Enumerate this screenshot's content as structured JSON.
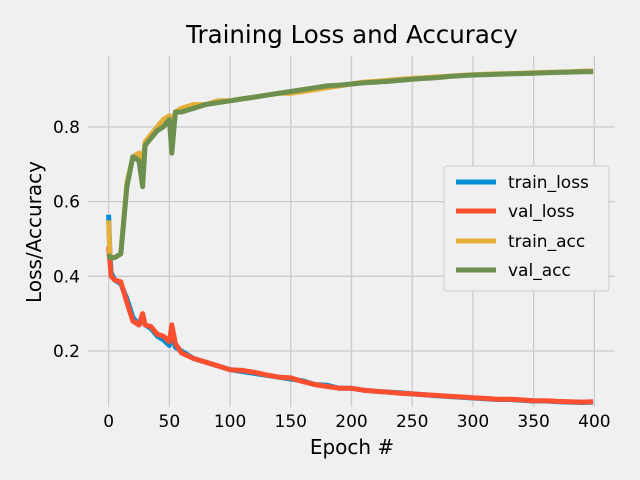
{
  "chart_data": {
    "type": "line",
    "title": "Training Loss and Accuracy",
    "xlabel": "Epoch #",
    "ylabel": "Loss/Accuracy",
    "xlim": [
      -17,
      417
    ],
    "ylim": [
      0.05,
      0.99
    ],
    "xticks": [
      0,
      50,
      100,
      150,
      200,
      250,
      300,
      350,
      400
    ],
    "yticks": [
      0.2,
      0.4,
      0.6,
      0.8
    ],
    "ytick_labels": [
      "0.2",
      "0.4",
      "0.6",
      "0.8"
    ],
    "grid": true,
    "legend_position": "center-right",
    "x": [
      0,
      1,
      2,
      5,
      10,
      15,
      20,
      25,
      28,
      30,
      35,
      40,
      45,
      50,
      52,
      55,
      60,
      70,
      80,
      90,
      100,
      110,
      120,
      130,
      140,
      150,
      160,
      170,
      180,
      190,
      200,
      210,
      220,
      230,
      240,
      250,
      260,
      270,
      280,
      290,
      300,
      310,
      320,
      330,
      340,
      350,
      360,
      370,
      380,
      390,
      399
    ],
    "series": [
      {
        "name": "train_loss",
        "color": "#008fd5",
        "values": [
          0.565,
          0.46,
          0.41,
          0.39,
          0.38,
          0.34,
          0.29,
          0.27,
          0.29,
          0.27,
          0.26,
          0.24,
          0.23,
          0.215,
          0.25,
          0.21,
          0.2,
          0.18,
          0.17,
          0.16,
          0.15,
          0.145,
          0.14,
          0.135,
          0.13,
          0.125,
          0.12,
          0.11,
          0.108,
          0.1,
          0.1,
          0.095,
          0.092,
          0.09,
          0.088,
          0.085,
          0.083,
          0.08,
          0.078,
          0.076,
          0.074,
          0.072,
          0.07,
          0.07,
          0.068,
          0.066,
          0.066,
          0.064,
          0.063,
          0.062,
          0.063
        ]
      },
      {
        "name": "val_loss",
        "color": "#fc4f30",
        "values": [
          0.48,
          0.44,
          0.4,
          0.39,
          0.385,
          0.33,
          0.28,
          0.27,
          0.3,
          0.27,
          0.265,
          0.245,
          0.24,
          0.225,
          0.27,
          0.22,
          0.195,
          0.18,
          0.17,
          0.16,
          0.15,
          0.148,
          0.143,
          0.136,
          0.13,
          0.128,
          0.118,
          0.11,
          0.105,
          0.1,
          0.1,
          0.095,
          0.092,
          0.09,
          0.087,
          0.085,
          0.083,
          0.081,
          0.079,
          0.077,
          0.075,
          0.073,
          0.071,
          0.071,
          0.069,
          0.067,
          0.067,
          0.065,
          0.064,
          0.063,
          0.064
        ]
      },
      {
        "name": "train_acc",
        "color": "#e5ae38",
        "values": [
          0.55,
          0.46,
          0.45,
          0.45,
          0.46,
          0.65,
          0.72,
          0.73,
          0.7,
          0.76,
          0.78,
          0.8,
          0.82,
          0.83,
          0.8,
          0.84,
          0.85,
          0.86,
          0.86,
          0.87,
          0.87,
          0.875,
          0.88,
          0.885,
          0.89,
          0.89,
          0.895,
          0.9,
          0.905,
          0.91,
          0.915,
          0.92,
          0.922,
          0.925,
          0.928,
          0.93,
          0.932,
          0.934,
          0.936,
          0.938,
          0.94,
          0.941,
          0.942,
          0.943,
          0.944,
          0.945,
          0.946,
          0.947,
          0.948,
          0.949,
          0.95
        ]
      },
      {
        "name": "val_acc",
        "color": "#6d904f",
        "values": [
          0.46,
          0.45,
          0.45,
          0.45,
          0.46,
          0.64,
          0.72,
          0.71,
          0.64,
          0.75,
          0.77,
          0.79,
          0.8,
          0.82,
          0.73,
          0.84,
          0.84,
          0.85,
          0.86,
          0.865,
          0.87,
          0.875,
          0.88,
          0.885,
          0.89,
          0.895,
          0.9,
          0.905,
          0.91,
          0.912,
          0.915,
          0.918,
          0.92,
          0.922,
          0.925,
          0.928,
          0.93,
          0.932,
          0.935,
          0.937,
          0.939,
          0.94,
          0.941,
          0.942,
          0.943,
          0.944,
          0.945,
          0.946,
          0.947,
          0.948,
          0.948
        ]
      }
    ]
  }
}
